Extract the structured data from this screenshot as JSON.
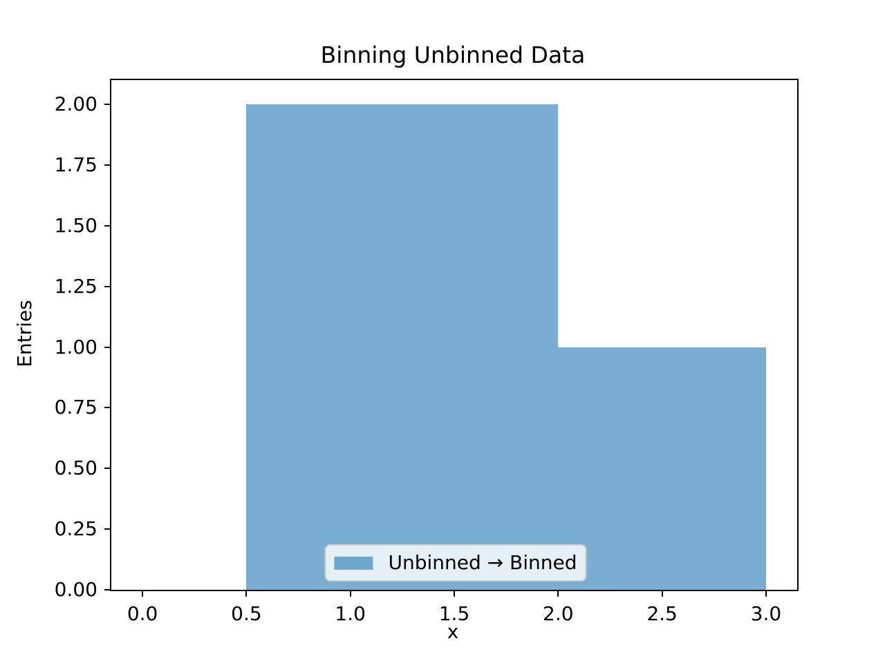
{
  "chart_data": {
    "type": "bar",
    "subtype": "stepfilled-histogram",
    "title": "Binning Unbinned Data",
    "xlabel": "x",
    "ylabel": "Entries",
    "bin_edges": [
      0.5,
      2.0,
      3.0
    ],
    "counts": [
      2,
      1
    ],
    "xlim": [
      -0.15,
      3.15
    ],
    "ylim": [
      0,
      2.1
    ],
    "xticks": [
      0.0,
      0.5,
      1.0,
      1.5,
      2.0,
      2.5,
      3.0
    ],
    "xtick_labels": [
      "0.0",
      "0.5",
      "1.0",
      "1.5",
      "2.0",
      "2.5",
      "3.0"
    ],
    "yticks": [
      0.0,
      0.25,
      0.5,
      0.75,
      1.0,
      1.25,
      1.5,
      1.75,
      2.0
    ],
    "ytick_labels": [
      "0.00",
      "0.25",
      "0.50",
      "0.75",
      "1.00",
      "1.25",
      "1.50",
      "1.75",
      "2.00"
    ],
    "grid": false,
    "legend": {
      "position": "lower center",
      "entries": [
        {
          "label": "Unbinned → Binned",
          "swatch_color": "rgba(31,119,180,0.6)"
        }
      ]
    },
    "colors": {
      "bar_fill": "rgba(31,119,180,0.6)",
      "bar_fill_over_white_hex": "#79add2",
      "spine": "#000000",
      "text": "#000000",
      "legend_background": "rgba(255,255,255,0.8)",
      "legend_border": "#cccccc"
    }
  }
}
